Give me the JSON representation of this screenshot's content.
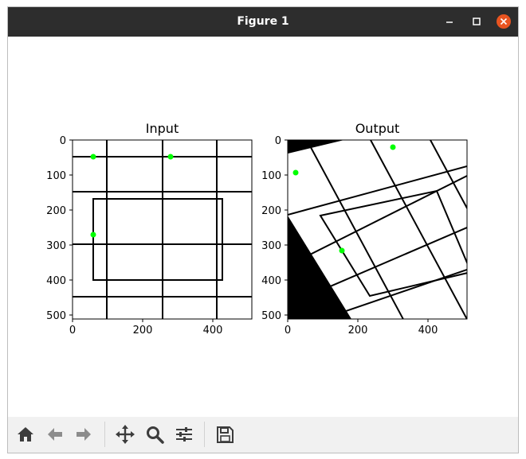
{
  "window": {
    "title": "Figure 1"
  },
  "axes": [
    {
      "title": "Input",
      "xticks": [
        "0",
        "200",
        "400"
      ],
      "yticks": [
        "0",
        "100",
        "200",
        "300",
        "400",
        "500"
      ],
      "xlim": [
        0,
        512
      ],
      "ylim": [
        512,
        0
      ],
      "points": [
        [
          60,
          48
        ],
        [
          280,
          48
        ],
        [
          60,
          270
        ]
      ]
    },
    {
      "title": "Output",
      "xticks": [
        "0",
        "200",
        "400"
      ],
      "yticks": [
        "0",
        "100",
        "200",
        "300",
        "400",
        "500"
      ],
      "xlim": [
        0,
        512
      ],
      "ylim": [
        512,
        0
      ],
      "points": [
        [
          24,
          95
        ],
        [
          302,
          20
        ],
        [
          156,
          316
        ]
      ]
    }
  ],
  "colors": {
    "point": "#00ff00",
    "titlebar": "#2d2d2d",
    "close": "#e95420"
  },
  "toolbar": {
    "items": [
      "home-icon",
      "back-icon",
      "forward-icon",
      "pan-icon",
      "zoom-icon",
      "configure-subplots-icon",
      "save-icon"
    ]
  }
}
